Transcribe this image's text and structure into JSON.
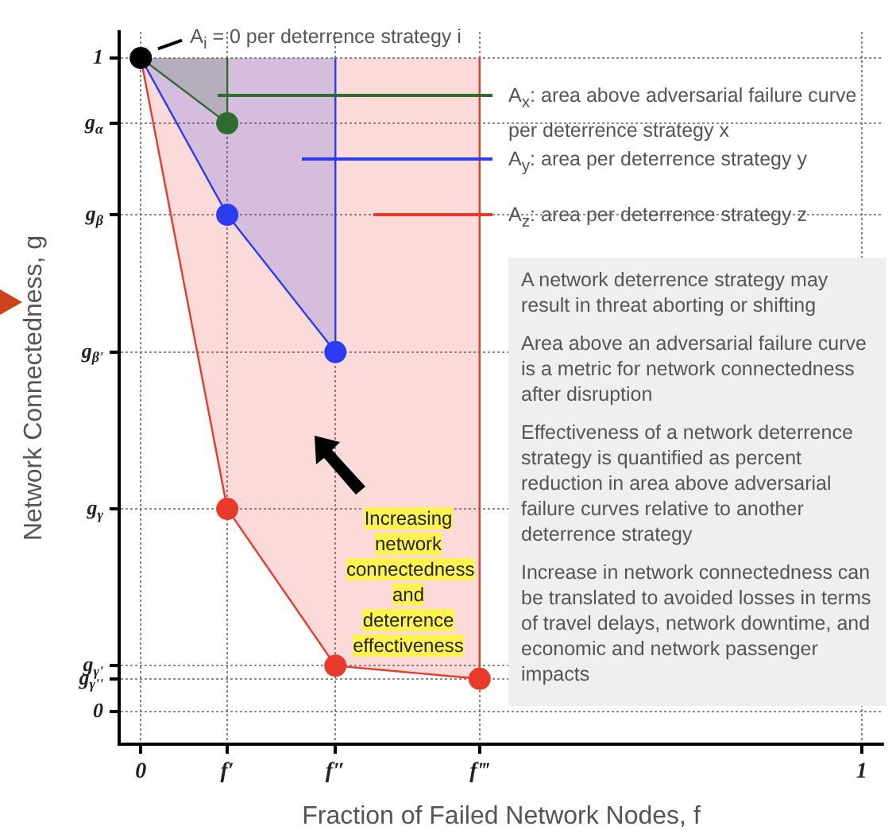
{
  "chart_data": {
    "type": "area",
    "xlabel": "Fraction of Failed Network Nodes, f",
    "ylabel": "Network Connectedness, g",
    "xlim": [
      -0.03,
      1.03
    ],
    "ylim": [
      -0.05,
      1.04
    ],
    "xticks": [
      0,
      {
        "value": 0.12,
        "label": "f′"
      },
      {
        "value": 0.27,
        "label": "f″"
      },
      {
        "value": 0.47,
        "label": "f‴"
      },
      1
    ],
    "yticks": [
      0,
      {
        "value": 0.05,
        "label": "g$_{γ''}$"
      },
      {
        "value": 0.07,
        "label": "g$_{γ'}$"
      },
      {
        "value": 0.31,
        "label": "g$_{γ}$"
      },
      {
        "value": 0.55,
        "label": "g$_{β'}$"
      },
      {
        "value": 0.76,
        "label": "g$_{β}$"
      },
      {
        "value": 0.9,
        "label": "g$_{α}$"
      },
      1
    ],
    "grid": true,
    "legend": "top right",
    "marker": "circle",
    "line_style": "solid",
    "series": [
      {
        "name": "A$_{x}$: area above adversarial failure curve per deterrence strategy x",
        "color": "#2e6b2e",
        "marker": "none",
        "x": [
          0,
          0.12,
          0.12
        ],
        "values": [
          1,
          0.9,
          1
        ]
      },
      {
        "name": "A$_{y}$: area per deterrence strategy y",
        "color": "#2a3ef0",
        "marker": "none",
        "x": [
          0,
          0.12,
          0.27,
          0.27
        ],
        "values": [
          1,
          0.76,
          0.55,
          1
        ]
      },
      {
        "name": "A$_{z}$: area per deterrence strategy z",
        "color": "#e8392b",
        "marker": "none",
        "x": [
          0,
          0.12,
          0.27,
          0.47,
          0.47
        ],
        "values": [
          1,
          0.31,
          0.07,
          0.05,
          1
        ]
      },
      {
        "type": "scatter",
        "color": "#2e6b2e",
        "x": [
          0.12
        ],
        "values": [
          0.9
        ]
      },
      {
        "type": "scatter",
        "color": "#2a3ef0",
        "x": [
          0.12,
          0.27
        ],
        "values": [
          0.76,
          0.55
        ]
      },
      {
        "type": "scatter",
        "color": "#e8392b",
        "x": [
          0.12,
          0.27,
          0.47
        ],
        "values": [
          0.31,
          0.07,
          0.05
        ]
      },
      {
        "type": "scatter",
        "color": "#000000",
        "x": [
          0
        ],
        "values": [
          1
        ]
      }
    ],
    "annotations": [
      {
        "text": "A$_{i}$ = 0 per deterrence strategy i",
        "x": 0,
        "y": 1
      },
      "A network deterrence strategy may result in threat aborting or shifting",
      "Area above an adversarial failure curve is a metric for network connectedness after disruption",
      "Effectiveness of a network deterrence strategy is quantified as percent reduction in area above adversarial failure curves relative to another deterrence strategy",
      "Increase in network connectedness can be translated to avoided losses in terms of travel delays, network downtime, and economic and network passenger impacts",
      "Increasing network connectedness and deterrence effectiveness"
    ]
  }
}
